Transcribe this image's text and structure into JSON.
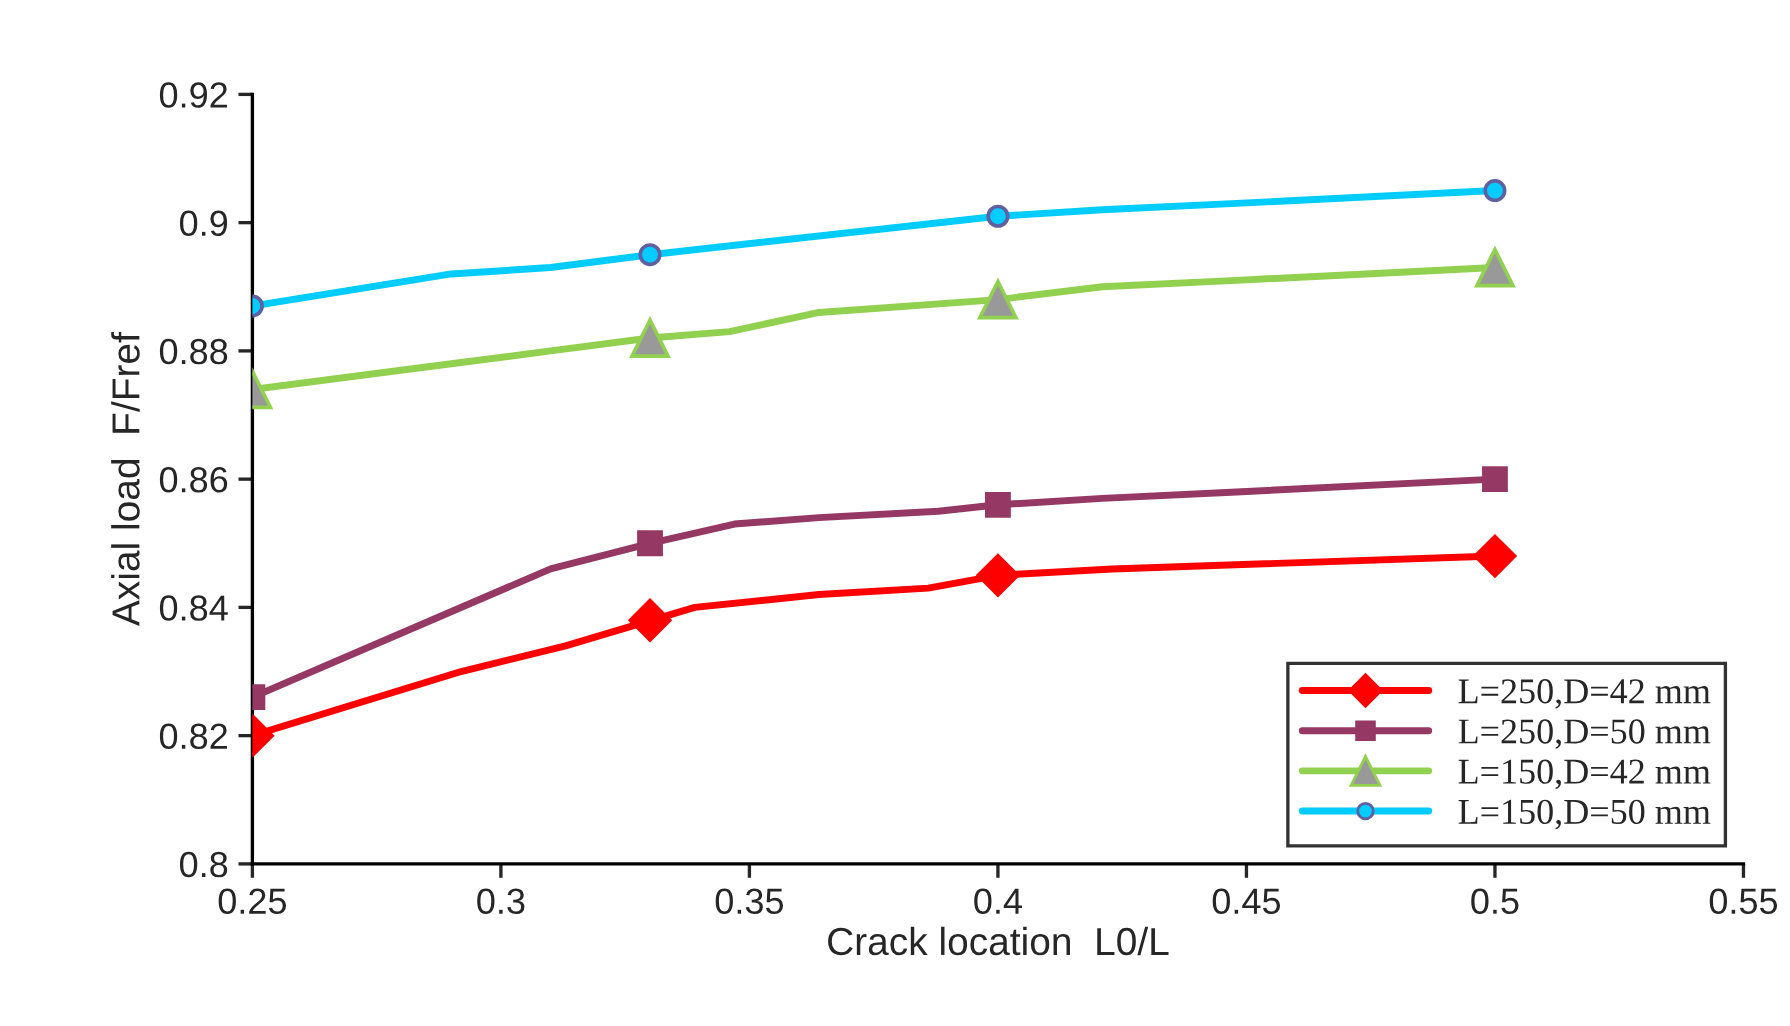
{
  "chart_data": {
    "type": "line",
    "xlabel": "Crack location  L0/L",
    "ylabel": "Axial load  F/Fref",
    "xlim": [
      0.25,
      0.55
    ],
    "xticks": [
      0.25,
      0.3,
      0.35,
      0.4,
      0.45,
      0.5,
      0.55
    ],
    "ylim": [
      0.8,
      0.92
    ],
    "yticks": [
      0.8,
      0.82,
      0.84,
      0.86,
      0.88,
      0.9,
      0.92
    ],
    "grid": false,
    "legend": "bottom right",
    "series": [
      {
        "marker": "none",
        "color": "#ff0000",
        "x": [
          0.25,
          0.292,
          0.313,
          0.339,
          0.364,
          0.386,
          0.4,
          0.423,
          0.5
        ],
        "values": [
          0.82,
          0.83,
          0.834,
          0.84,
          0.842,
          0.843,
          0.845,
          0.846,
          0.848
        ]
      },
      {
        "marker": "none",
        "color": "#953864",
        "x": [
          0.25,
          0.31,
          0.33,
          0.347,
          0.364,
          0.388,
          0.4,
          0.421,
          0.448,
          0.5
        ],
        "values": [
          0.826,
          0.846,
          0.85,
          0.853,
          0.854,
          0.855,
          0.856,
          0.857,
          0.858,
          0.86
        ]
      },
      {
        "marker": "none",
        "color": "#92d050",
        "x": [
          0.25,
          0.29,
          0.31,
          0.33,
          0.346,
          0.364,
          0.4,
          0.421,
          0.448,
          0.474,
          0.5
        ],
        "values": [
          0.874,
          0.878,
          0.88,
          0.882,
          0.883,
          0.886,
          0.888,
          0.89,
          0.891,
          0.892,
          0.893
        ]
      },
      {
        "marker": "none",
        "color": "#00ccff",
        "x": [
          0.25,
          0.29,
          0.31,
          0.33,
          0.4,
          0.421,
          0.448,
          0.5
        ],
        "values": [
          0.887,
          0.892,
          0.893,
          0.895,
          0.901,
          0.902,
          0.903,
          0.905
        ]
      },
      {
        "type": "scatter",
        "name": "L=250,D=42 mm",
        "marker": "diamond",
        "color": "#ff0000",
        "x": [
          0.25,
          0.33,
          0.4,
          0.5
        ],
        "values": [
          0.82,
          0.838,
          0.845,
          0.848
        ]
      },
      {
        "type": "scatter",
        "name": "L=250,D=50 mm",
        "marker": "square",
        "color": "#953864",
        "x": [
          0.25,
          0.33,
          0.4,
          0.5
        ],
        "values": [
          0.826,
          0.85,
          0.856,
          0.86
        ]
      },
      {
        "type": "scatter",
        "name": "L=150,D=42 mm",
        "marker": "triangle",
        "color": "#92d050",
        "x": [
          0.25,
          0.33,
          0.4,
          0.5
        ],
        "values": [
          0.874,
          0.882,
          0.888,
          0.893
        ]
      },
      {
        "type": "scatter",
        "name": "L=150,D=50 mm",
        "marker": "circle",
        "color": "#00ccff",
        "x": [
          0.25,
          0.33,
          0.4,
          0.5
        ],
        "values": [
          0.887,
          0.895,
          0.901,
          0.905
        ]
      }
    ]
  }
}
